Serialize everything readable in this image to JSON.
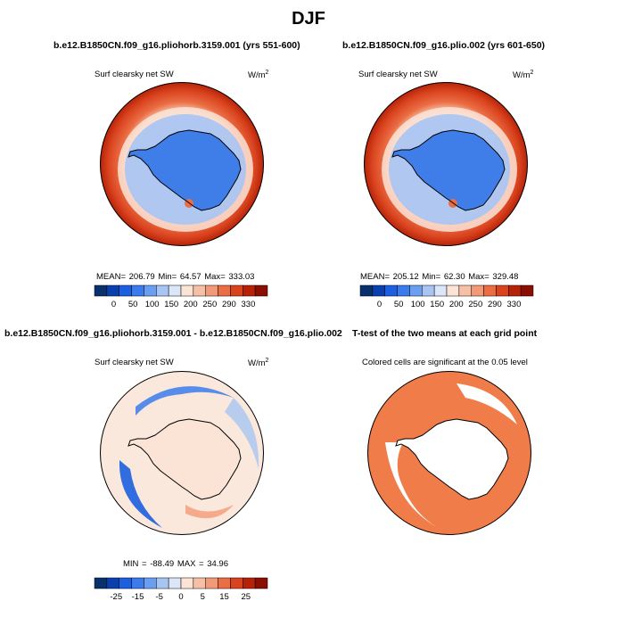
{
  "page": {
    "title": "DJF"
  },
  "panels": [
    {
      "title": "b.e12.B1850CN.f09_g16.pliohorb.3159.001 (yrs 551-600)",
      "variable": "Surf clearsky net SW",
      "units_base": "W/m",
      "units_exp": "2",
      "stats": "MEAN= 206.79   Min=  64.57   Max= 333.03"
    },
    {
      "title": "b.e12.B1850CN.f09_g16.plio.002 (yrs 601-650)",
      "variable": "Surf clearsky net SW",
      "units_base": "W/m",
      "units_exp": "2",
      "stats": "MEAN= 205.12   Min=  62.30   Max= 329.48"
    },
    {
      "title": "b.e12.B1850CN.f09_g16.pliohorb.3159.001 - b.e12.B1850CN.f09_g16.plio.002",
      "variable": "Surf clearsky net SW",
      "units_base": "W/m",
      "units_exp": "2",
      "stats": "MIN = -88.49  MAX =   34.96"
    },
    {
      "title": "T-test of the two means at each grid point",
      "variable": "Colored cells are significant at the 0.05 level"
    }
  ],
  "colors": {
    "scale": [
      "#08306b",
      "#0a3fae",
      "#1c5fe0",
      "#3b7bec",
      "#6a9ef0",
      "#a7c4f3",
      "#dbe6f8",
      "#fbe3d6",
      "#f6c0a6",
      "#f29a77",
      "#ea6d44",
      "#d9431e",
      "#b52208",
      "#8a0e02"
    ],
    "land_blue": "#3f7ee8",
    "ocean_far": "#cc3a1a",
    "signif": "#f07c4a"
  },
  "chart_data": [
    {
      "type": "heatmap",
      "projection": "south polar stereographic",
      "title": "b.e12.B1850CN.f09_g16.pliohorb.3159.001 (yrs 551-600)",
      "variable": "Surf clearsky net SW",
      "units": "W/m2",
      "mean": 206.79,
      "min": 64.57,
      "max": 333.03,
      "colorbar_ticks": [
        "0",
        "50",
        "100",
        "150",
        "200",
        "250",
        "290",
        "330"
      ]
    },
    {
      "type": "heatmap",
      "projection": "south polar stereographic",
      "title": "b.e12.B1850CN.f09_g16.plio.002 (yrs 601-650)",
      "variable": "Surf clearsky net SW",
      "units": "W/m2",
      "mean": 205.12,
      "min": 62.3,
      "max": 329.48,
      "colorbar_ticks": [
        "0",
        "50",
        "100",
        "150",
        "200",
        "250",
        "290",
        "330"
      ]
    },
    {
      "type": "heatmap",
      "projection": "south polar stereographic",
      "title": "b.e12.B1850CN.f09_g16.pliohorb.3159.001 - b.e12.B1850CN.f09_g16.plio.002",
      "variable": "Surf clearsky net SW",
      "units": "W/m2",
      "min": -88.49,
      "max": 34.96,
      "colorbar_ticks": [
        "-25",
        "-15",
        "-5",
        "0",
        "5",
        "15",
        "25"
      ]
    },
    {
      "type": "heatmap",
      "projection": "south polar stereographic",
      "title": "T-test of the two means at each grid point",
      "note": "Colored cells are significant at the 0.05 level",
      "significance_level": 0.05
    }
  ]
}
